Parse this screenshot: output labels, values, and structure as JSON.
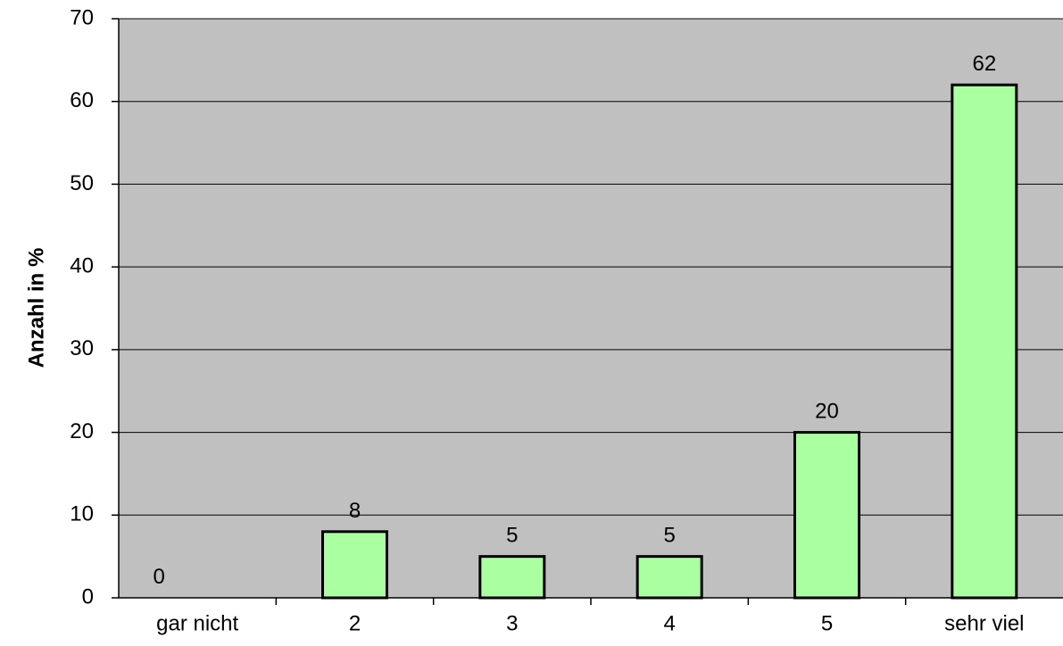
{
  "chart_data": {
    "type": "bar",
    "categories": [
      "gar nicht",
      "2",
      "3",
      "4",
      "5",
      "sehr viel"
    ],
    "values": [
      0,
      8,
      5,
      5,
      20,
      62
    ],
    "data_labels": [
      "0",
      "8",
      "5",
      "5",
      "20",
      "62"
    ],
    "title": "",
    "xlabel": "",
    "ylabel": "Anzahl in %",
    "ylim": [
      0,
      70
    ],
    "yticks": [
      0,
      10,
      20,
      30,
      40,
      50,
      60,
      70
    ],
    "grid": true,
    "legend": "none",
    "colors": {
      "plot_background": "#c0c0c0",
      "bar_fill": "#aaffa0",
      "bar_stroke": "#000000",
      "gridline": "#000000"
    }
  }
}
